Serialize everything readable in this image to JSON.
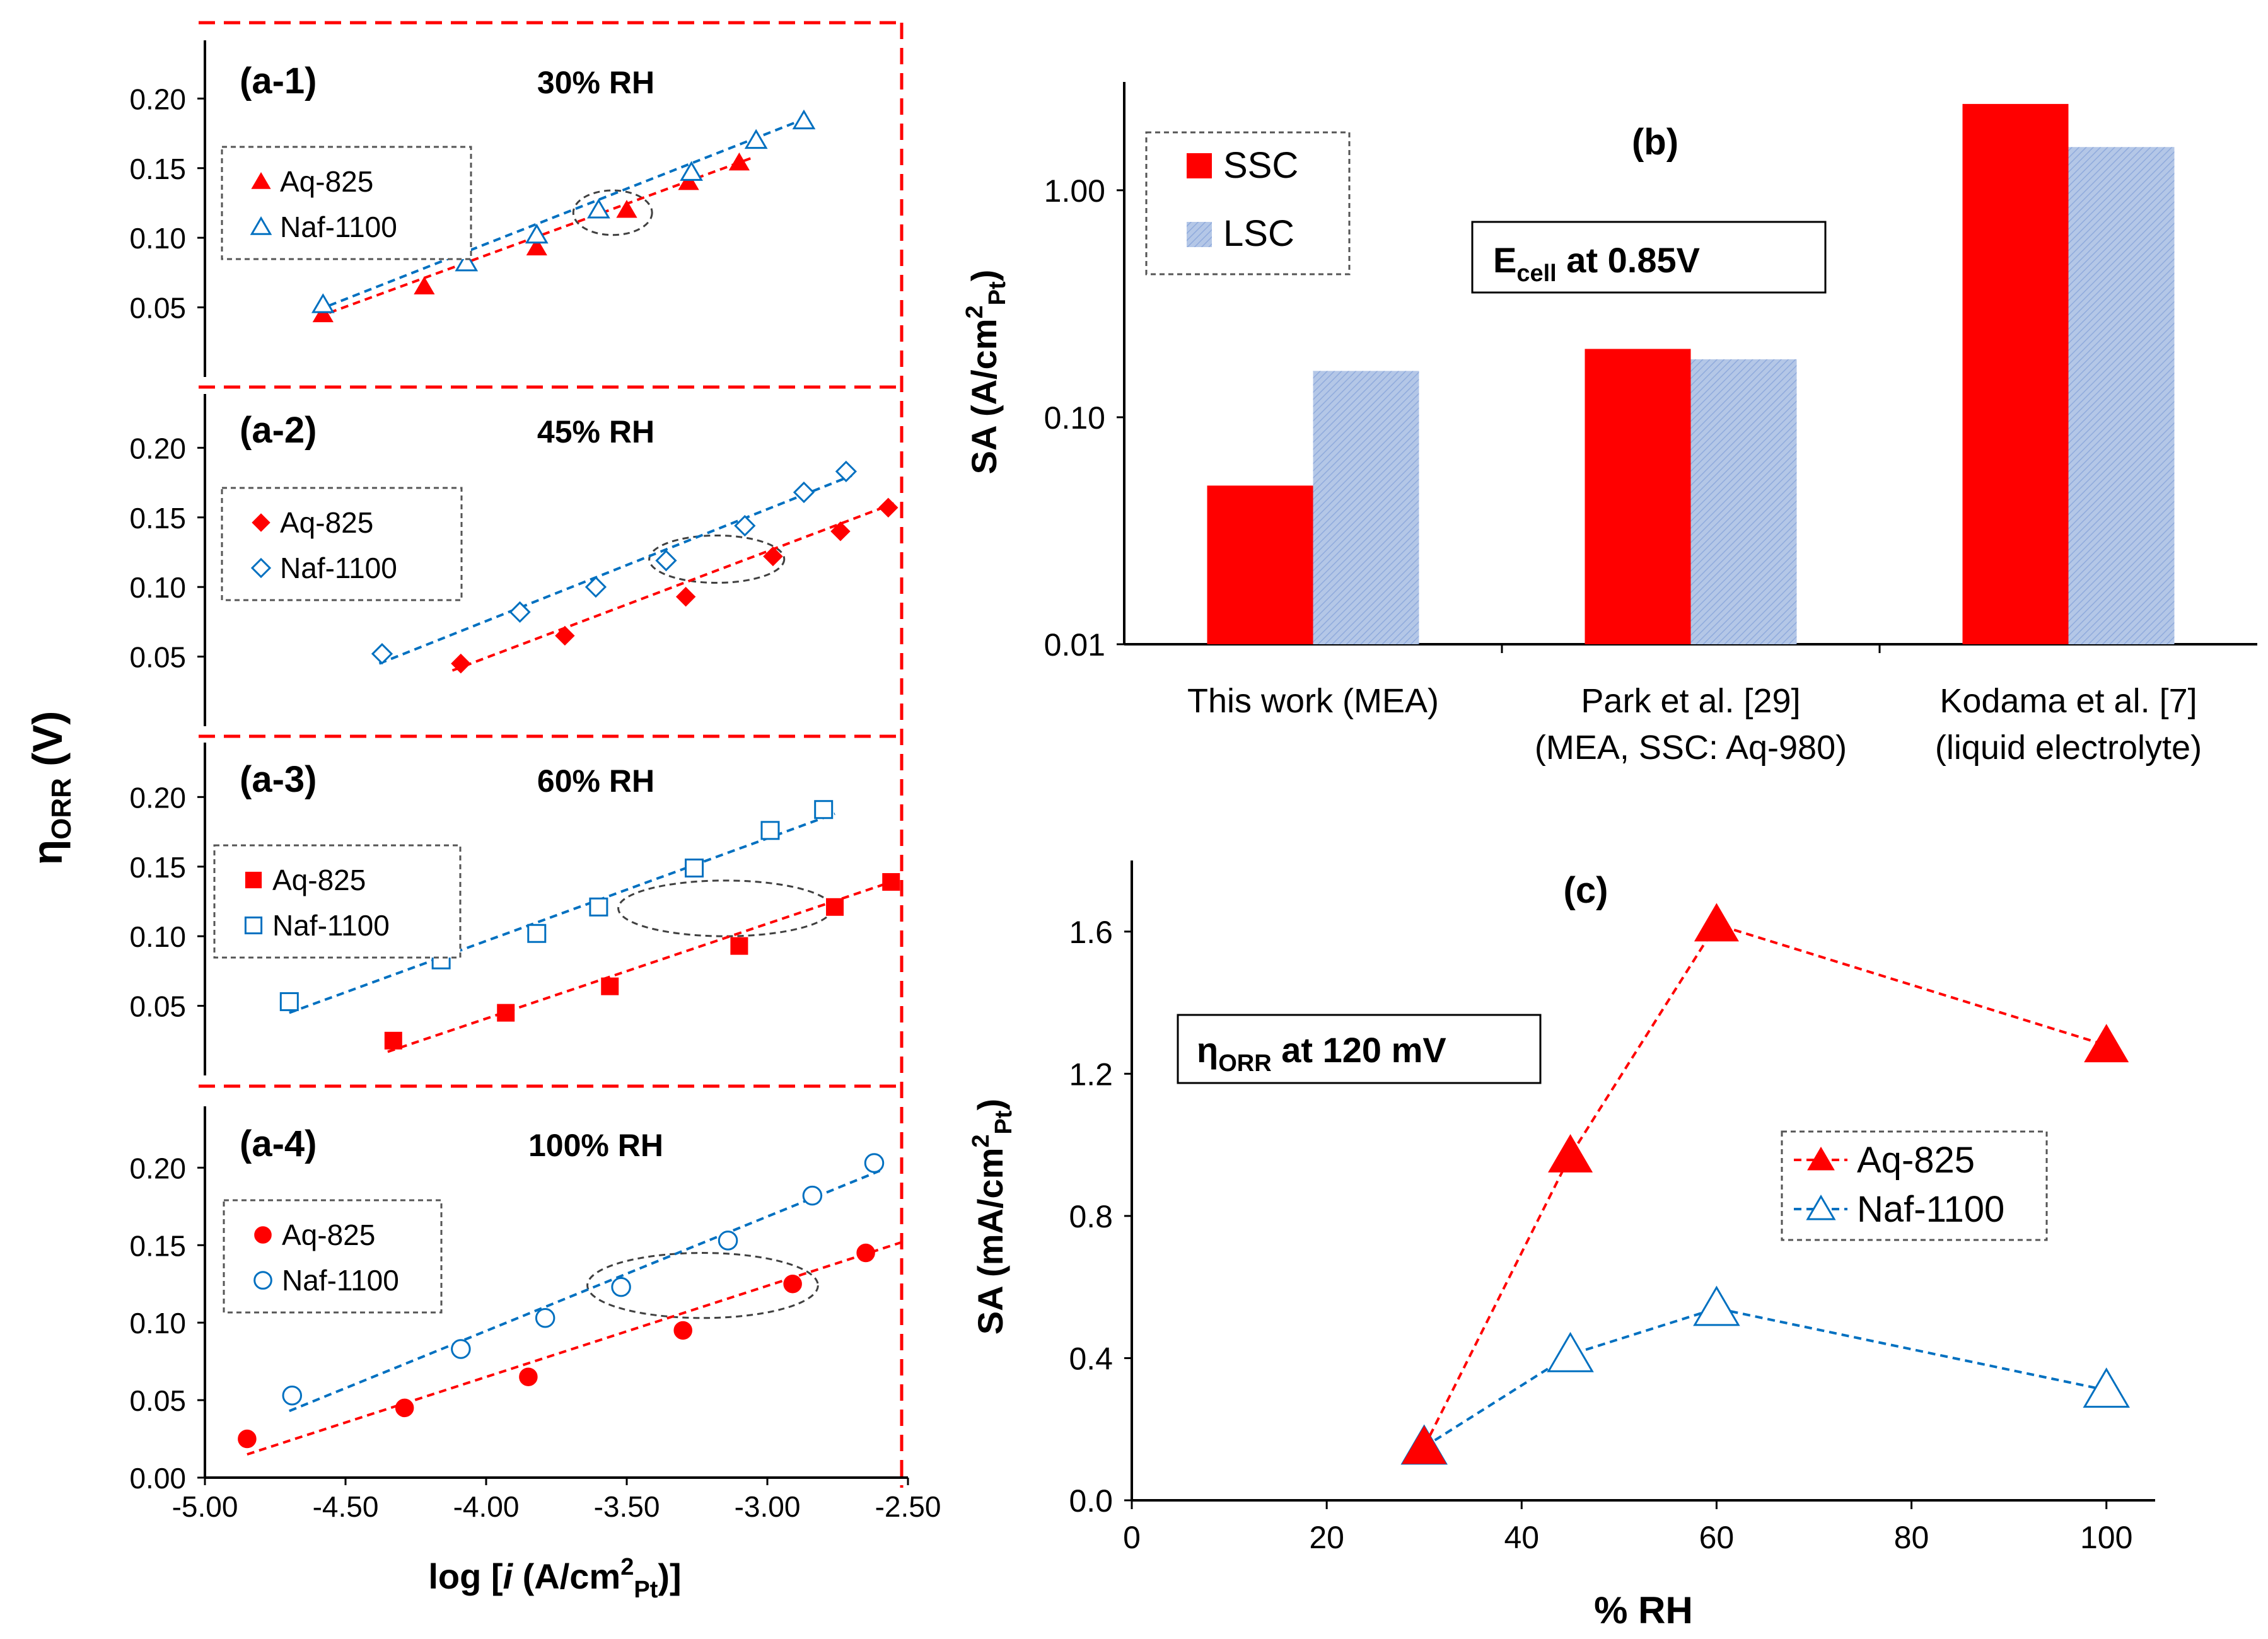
{
  "colors": {
    "aq": "#ff0000",
    "naf": "#0070c0",
    "frame": "#ff0000",
    "ellipse": "#404040",
    "lsc_fill": "#b4c7e7",
    "lsc_hatch": "#8faadc"
  },
  "figure": {
    "a_axis_label_main": "η",
    "a_axis_label_sub": "ORR",
    "a_axis_label_unit": " (V)",
    "a_x_label_pre": "log [",
    "a_x_label_i": "i",
    "a_x_label_unit": " (A/cm",
    "a_x_label_sup": "2",
    "a_x_label_sub": "Pt",
    "a_x_label_post": ")]",
    "b_ann_main": "E",
    "b_ann_sub": "cell",
    "b_ann_post": " at 0.85V",
    "b_y_main": "SA (A/cm",
    "b_y_sup": "2",
    "b_y_sub": "Pt",
    "b_y_post": ")",
    "c_ann_main": "η",
    "c_ann_sub": "ORR",
    "c_ann_post": " at 120 mV",
    "c_y_main": "SA (mA/cm",
    "c_y_sup": "2",
    "c_y_sub": "Pt",
    "c_y_post": ")"
  },
  "chart_data": [
    {
      "id": "a-1",
      "type": "scatter",
      "label": "(a-1)",
      "title": "30% RH",
      "marker": "triangle",
      "xlabel": "log [i (A/cm2Pt)]",
      "ylabel": "ηORR (V)",
      "xlim": [
        -5.0,
        -2.5
      ],
      "ylim": [
        0.0,
        0.24
      ],
      "yticks": [
        0.05,
        0.1,
        0.15,
        0.2
      ],
      "ytick_labels": [
        "0.05",
        "0.10",
        "0.15",
        "0.20"
      ],
      "legend": [
        "Aq-825",
        "Naf-1100"
      ],
      "series": [
        {
          "name": "Aq-825",
          "filled": true,
          "x": [
            -4.58,
            -4.22,
            -3.82,
            -3.5,
            -3.28,
            -3.1
          ],
          "y": [
            0.045,
            0.065,
            0.093,
            0.12,
            0.14,
            0.154
          ],
          "fit": [
            [
              -4.6,
              0.043
            ],
            [
              -3.06,
              0.157
            ]
          ]
        },
        {
          "name": "Naf-1100",
          "filled": false,
          "x": [
            -4.58,
            -4.07,
            -3.82,
            -3.6,
            -3.27,
            -3.04,
            -2.87
          ],
          "y": [
            0.052,
            0.082,
            0.102,
            0.12,
            0.147,
            0.17,
            0.184
          ],
          "fit": [
            [
              -4.6,
              0.048
            ],
            [
              -2.86,
              0.186
            ]
          ]
        }
      ],
      "ellipse": {
        "cx": -3.55,
        "cy": 0.118,
        "rx": 0.14,
        "ry": 0.016
      }
    },
    {
      "id": "a-2",
      "type": "scatter",
      "label": "(a-2)",
      "title": "45% RH",
      "marker": "diamond",
      "xlim": [
        -5.0,
        -2.5
      ],
      "ylim": [
        0.0,
        0.24
      ],
      "yticks": [
        0.05,
        0.1,
        0.15,
        0.2
      ],
      "ytick_labels": [
        "0.05",
        "0.10",
        "0.15",
        "0.20"
      ],
      "legend": [
        "Aq-825",
        "Naf-1100"
      ],
      "series": [
        {
          "name": "Aq-825",
          "filled": true,
          "x": [
            -4.09,
            -3.72,
            -3.29,
            -2.98,
            -2.74,
            -2.57
          ],
          "y": [
            0.045,
            0.065,
            0.093,
            0.122,
            0.14,
            0.157
          ],
          "fit": [
            [
              -4.12,
              0.04
            ],
            [
              -2.55,
              0.16
            ]
          ]
        },
        {
          "name": "Naf-1100",
          "filled": false,
          "x": [
            -4.37,
            -3.88,
            -3.61,
            -3.36,
            -3.08,
            -2.87,
            -2.72
          ],
          "y": [
            0.052,
            0.082,
            0.1,
            0.119,
            0.144,
            0.168,
            0.183
          ],
          "fit": [
            [
              -4.38,
              0.045
            ],
            [
              -2.7,
              0.18
            ]
          ]
        }
      ],
      "ellipse": {
        "cx": -3.18,
        "cy": 0.12,
        "rx": 0.24,
        "ry": 0.017
      }
    },
    {
      "id": "a-3",
      "type": "scatter",
      "label": "(a-3)",
      "title": "60% RH",
      "marker": "square",
      "xlim": [
        -5.0,
        -2.5
      ],
      "ylim": [
        0.0,
        0.24
      ],
      "yticks": [
        0.05,
        0.1,
        0.15,
        0.2
      ],
      "ytick_labels": [
        "0.05",
        "0.10",
        "0.15",
        "0.20"
      ],
      "legend": [
        "Aq-825",
        "Naf-1100"
      ],
      "series": [
        {
          "name": "Aq-825",
          "filled": true,
          "x": [
            -4.33,
            -3.93,
            -3.56,
            -3.1,
            -2.76,
            -2.56
          ],
          "y": [
            0.025,
            0.045,
            0.064,
            0.093,
            0.121,
            0.139
          ],
          "fit": [
            [
              -4.35,
              0.017
            ],
            [
              -2.53,
              0.141
            ]
          ]
        },
        {
          "name": "Naf-1100",
          "filled": false,
          "x": [
            -4.7,
            -4.16,
            -3.82,
            -3.6,
            -3.26,
            -2.99,
            -2.8
          ],
          "y": [
            0.053,
            0.083,
            0.102,
            0.121,
            0.149,
            0.176,
            0.191
          ],
          "fit": [
            [
              -4.7,
              0.045
            ],
            [
              -2.76,
              0.188
            ]
          ]
        }
      ],
      "ellipse": {
        "cx": -3.15,
        "cy": 0.12,
        "rx": 0.38,
        "ry": 0.02
      }
    },
    {
      "id": "a-4",
      "type": "scatter",
      "label": "(a-4)",
      "title": "100% RH",
      "marker": "circle",
      "xlim": [
        -5.0,
        -2.5
      ],
      "ylim": [
        0.0,
        0.24
      ],
      "yticks": [
        0.0,
        0.05,
        0.1,
        0.15,
        0.2
      ],
      "ytick_labels": [
        "0.00",
        "0.05",
        "0.10",
        "0.15",
        "0.20"
      ],
      "xticks": [
        -5.0,
        -4.5,
        -4.0,
        -3.5,
        -3.0,
        -2.5
      ],
      "xtick_labels": [
        "-5.00",
        "-4.50",
        "-4.00",
        "-3.50",
        "-3.00",
        "-2.50"
      ],
      "legend": [
        "Aq-825",
        "Naf-1100"
      ],
      "series": [
        {
          "name": "Aq-825",
          "filled": true,
          "x": [
            -4.85,
            -4.29,
            -3.85,
            -3.3,
            -2.91,
            -2.65
          ],
          "y": [
            0.025,
            0.045,
            0.065,
            0.095,
            0.125,
            0.145
          ],
          "fit": [
            [
              -4.85,
              0.015
            ],
            [
              -2.52,
              0.152
            ]
          ]
        },
        {
          "name": "Naf-1100",
          "filled": false,
          "x": [
            -4.69,
            -4.09,
            -3.79,
            -3.52,
            -3.14,
            -2.84,
            -2.62
          ],
          "y": [
            0.053,
            0.083,
            0.103,
            0.123,
            0.153,
            0.182,
            0.203
          ],
          "fit": [
            [
              -4.7,
              0.043
            ],
            [
              -2.6,
              0.198
            ]
          ]
        }
      ],
      "ellipse": {
        "cx": -3.23,
        "cy": 0.124,
        "rx": 0.41,
        "ry": 0.021
      }
    },
    {
      "id": "b",
      "type": "bar",
      "label": "(b)",
      "scale": "log",
      "ylabel": "SA (A/cm2Pt)",
      "ylim": [
        0.01,
        3.0
      ],
      "yticks": [
        0.01,
        0.1,
        1.0
      ],
      "ytick_labels": [
        "0.01",
        "0.10",
        "1.00"
      ],
      "categories": [
        [
          "This work (MEA)"
        ],
        [
          "Park et al. [29]",
          "(MEA, SSC: Aq-980)"
        ],
        [
          "Kodama et al. [7]",
          "(liquid electrolyte)"
        ]
      ],
      "series": [
        {
          "name": "SSC",
          "values": [
            0.05,
            0.2,
            2.4
          ]
        },
        {
          "name": "LSC",
          "values": [
            0.16,
            0.18,
            1.55
          ]
        }
      ],
      "annotation": "Ecell at 0.85V"
    },
    {
      "id": "c",
      "type": "line",
      "label": "(c)",
      "xlabel": "% RH",
      "ylabel": "SA (mA/cm2Pt)",
      "xlim": [
        0,
        105
      ],
      "ylim": [
        0,
        1.8
      ],
      "xticks": [
        0,
        20,
        40,
        60,
        80,
        100
      ],
      "xtick_labels": [
        "0",
        "20",
        "40",
        "60",
        "80",
        "100"
      ],
      "yticks": [
        0.0,
        0.4,
        0.8,
        1.2,
        1.6
      ],
      "ytick_labels": [
        "0.0",
        "0.4",
        "0.8",
        "1.2",
        "1.6"
      ],
      "series": [
        {
          "name": "Aq-825",
          "filled": true,
          "x": [
            30,
            45,
            60,
            100
          ],
          "y": [
            0.15,
            0.97,
            1.62,
            1.28
          ]
        },
        {
          "name": "Naf-1100",
          "filled": false,
          "x": [
            30,
            45,
            60,
            100
          ],
          "y": [
            0.15,
            0.41,
            0.54,
            0.31
          ]
        }
      ],
      "annotation": "ηORR at 120 mV"
    }
  ]
}
